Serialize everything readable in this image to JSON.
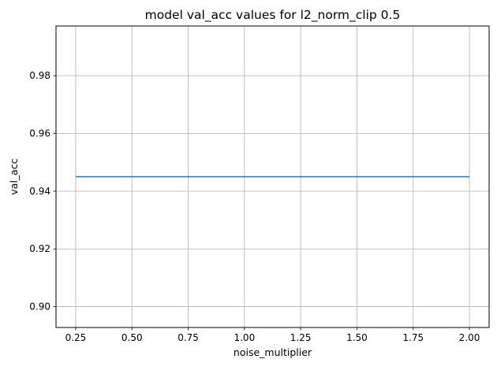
{
  "chart_data": {
    "type": "line",
    "title": "model val_acc values for l2_norm_clip 0.5",
    "xlabel": "noise_multiplier",
    "ylabel": "val_acc",
    "x": [
      0.25,
      0.5,
      0.75,
      1.0,
      1.25,
      1.5,
      1.75,
      2.0
    ],
    "series": [
      {
        "values": [
          0.945,
          0.945,
          0.945,
          0.945,
          0.945,
          0.945,
          0.945,
          0.945
        ],
        "color": "#1f77b4"
      }
    ],
    "xlim": [
      0.1625,
      2.0875
    ],
    "ylim": [
      0.8928,
      0.9972
    ],
    "xticks": [
      0.25,
      0.5,
      0.75,
      1.0,
      1.25,
      1.5,
      1.75,
      2.0
    ],
    "xtick_labels": [
      "0.25",
      "0.50",
      "0.75",
      "1.00",
      "1.25",
      "1.50",
      "1.75",
      "2.00"
    ],
    "yticks": [
      0.9,
      0.92,
      0.94,
      0.96,
      0.98
    ],
    "ytick_labels": [
      "0.90",
      "0.92",
      "0.94",
      "0.96",
      "0.98"
    ],
    "grid": true,
    "legend": false
  }
}
